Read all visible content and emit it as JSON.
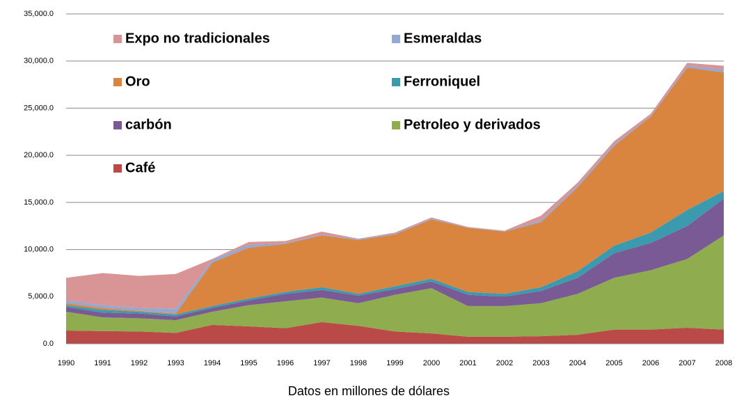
{
  "chart_data": {
    "type": "stacked-area",
    "caption": "Datos en millones de dólares",
    "categories": [
      "1990",
      "1991",
      "1992",
      "1993",
      "1994",
      "1995",
      "1996",
      "1997",
      "1998",
      "1999",
      "2000",
      "2001",
      "2002",
      "2003",
      "2004",
      "2005",
      "2006",
      "2007",
      "2008"
    ],
    "series": [
      {
        "name": "Café",
        "color": "#b94a48",
        "values": [
          1400,
          1350,
          1300,
          1150,
          2000,
          1850,
          1650,
          2300,
          1900,
          1300,
          1100,
          750,
          750,
          800,
          950,
          1500,
          1500,
          1700,
          1500
        ]
      },
      {
        "name": "Petroleo y derivados",
        "color": "#8fac4f",
        "values": [
          2000,
          1450,
          1400,
          1350,
          1400,
          2250,
          2850,
          2600,
          2400,
          3900,
          4800,
          3250,
          3250,
          3500,
          4350,
          5500,
          6300,
          7300,
          10000
        ]
      },
      {
        "name": "carbón",
        "color": "#7a5a95",
        "values": [
          500,
          500,
          500,
          400,
          400,
          500,
          800,
          800,
          800,
          600,
          700,
          1200,
          1000,
          1300,
          1700,
          2600,
          2900,
          3500,
          3900
        ]
      },
      {
        "name": "Ferroniquel",
        "color": "#3c9aae",
        "values": [
          200,
          300,
          200,
          200,
          200,
          200,
          200,
          300,
          200,
          300,
          300,
          300,
          300,
          400,
          700,
          800,
          1100,
          1700,
          800
        ]
      },
      {
        "name": "Oro",
        "color": "#d9843f",
        "values": [
          200,
          200,
          100,
          100,
          4600,
          5400,
          5100,
          5500,
          5700,
          5500,
          6300,
          6800,
          6600,
          6900,
          8900,
          10600,
          12300,
          15100,
          12600
        ]
      },
      {
        "name": "Esmeraldas",
        "color": "#93a9d2",
        "values": [
          300,
          300,
          300,
          500,
          300,
          300,
          100,
          100,
          100,
          100,
          100,
          50,
          50,
          200,
          200,
          200,
          100,
          200,
          300
        ]
      },
      {
        "name": "Expo no tradicionales",
        "color": "#d99595",
        "values": [
          2400,
          3400,
          3400,
          3700,
          100,
          300,
          200,
          300,
          50,
          100,
          100,
          50,
          50,
          500,
          300,
          300,
          200,
          300,
          400
        ]
      }
    ],
    "ylim": [
      0,
      35000
    ],
    "yticks": [
      {
        "value": 0,
        "label": "0.0"
      },
      {
        "value": 5000,
        "label": "5,000.0"
      },
      {
        "value": 10000,
        "label": "10,000.0"
      },
      {
        "value": 15000,
        "label": "15,000.0"
      },
      {
        "value": 20000,
        "label": "20,000.0"
      },
      {
        "value": 25000,
        "label": "25,000.0"
      },
      {
        "value": 30000,
        "label": "30,000.0"
      },
      {
        "value": 35000,
        "label": "35,000.0"
      }
    ],
    "grid": true,
    "legend": "top-left"
  }
}
